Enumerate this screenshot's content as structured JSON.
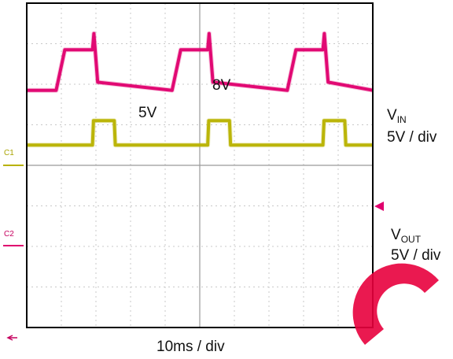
{
  "chart_data": {
    "type": "line",
    "title": "",
    "xlabel": "10ms / div",
    "ylabel": "",
    "grid": true,
    "divisions": {
      "x": 10,
      "y": 8
    },
    "x_unit": "ms",
    "x_per_div": 10,
    "xlim": [
      0,
      100
    ],
    "series": [
      {
        "name": "VIN",
        "channel": "C1",
        "scale": "5V / div",
        "color": "#b8b200",
        "reference_div": 4.5,
        "x": [
          0,
          19.0,
          19.3,
          25.3,
          25.6,
          52.3,
          52.6,
          58.6,
          58.9,
          85.6,
          85.9,
          91.9,
          92.2,
          100
        ],
        "y": [
          5,
          5,
          8,
          8,
          5,
          5,
          8,
          8,
          5,
          5,
          8,
          8,
          5,
          5
        ]
      },
      {
        "name": "VOUT",
        "channel": "C2",
        "scale": "5V / div",
        "color": "#e0006e",
        "reference_div": 2.15,
        "x": [
          0,
          8.5,
          11.0,
          19.0,
          19.4,
          20.5,
          42.0,
          44.5,
          52.3,
          52.7,
          53.8,
          75.3,
          77.8,
          85.6,
          86.0,
          87.1,
          100
        ],
        "y": [
          0,
          0,
          5,
          5,
          7,
          1,
          0,
          5,
          5,
          7,
          1,
          0,
          5,
          5,
          7,
          1,
          0
        ]
      }
    ],
    "annotations": [
      {
        "text": "5V",
        "x": 32,
        "y": 5,
        "series": "VIN"
      },
      {
        "text": "8V",
        "x": 54,
        "y": 8,
        "series": "VIN"
      }
    ]
  },
  "labels": {
    "ann_5v": "5V",
    "ann_8v": "8V",
    "vin_main": "V",
    "vin_sub": "IN",
    "vin_scale": "5V / div",
    "vout_main": "V",
    "vout_sub": "OUT",
    "vout_scale": "5V / div",
    "time_div": "10ms / div",
    "c1": "C1",
    "c2": "C2"
  },
  "colors": {
    "frame": "#000000",
    "grid": "#c8c8c8",
    "logo": "#e8003d"
  }
}
